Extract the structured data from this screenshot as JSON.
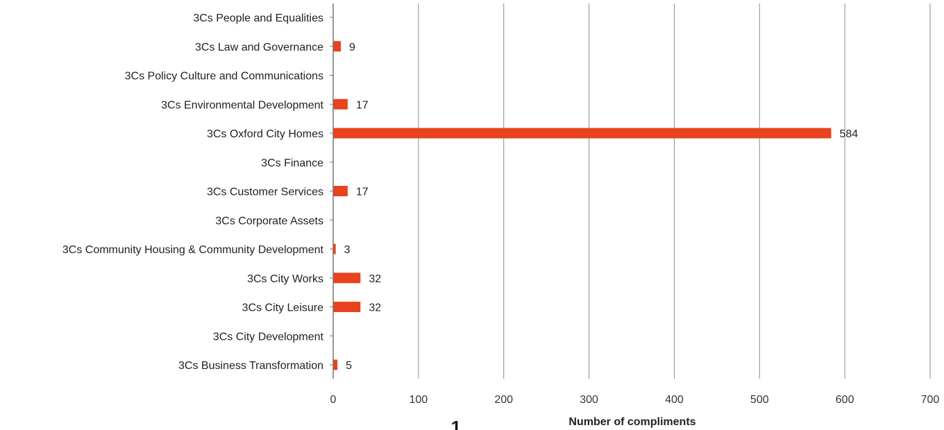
{
  "page_number": "1",
  "chart_data": {
    "type": "bar",
    "orientation": "horizontal",
    "xlabel": "Number of compliments",
    "xlim": [
      0,
      700
    ],
    "xticks": [
      0,
      100,
      200,
      300,
      400,
      500,
      600,
      700
    ],
    "grid": "vertical",
    "bar_color": "#e8421e",
    "categories": [
      "3Cs People and Equalities",
      "3Cs Law and Governance",
      "3Cs Policy Culture and Communications",
      "3Cs Environmental Development",
      "3Cs Oxford City Homes",
      "3Cs Finance",
      "3Cs Customer Services",
      "3Cs Corporate Assets",
      "3Cs Community Housing & Community Development",
      "3Cs City Works",
      "3Cs City Leisure",
      "3Cs City Development",
      "3Cs Business Transformation"
    ],
    "values": [
      null,
      9,
      null,
      17,
      584,
      null,
      17,
      null,
      3,
      32,
      32,
      null,
      5
    ]
  }
}
